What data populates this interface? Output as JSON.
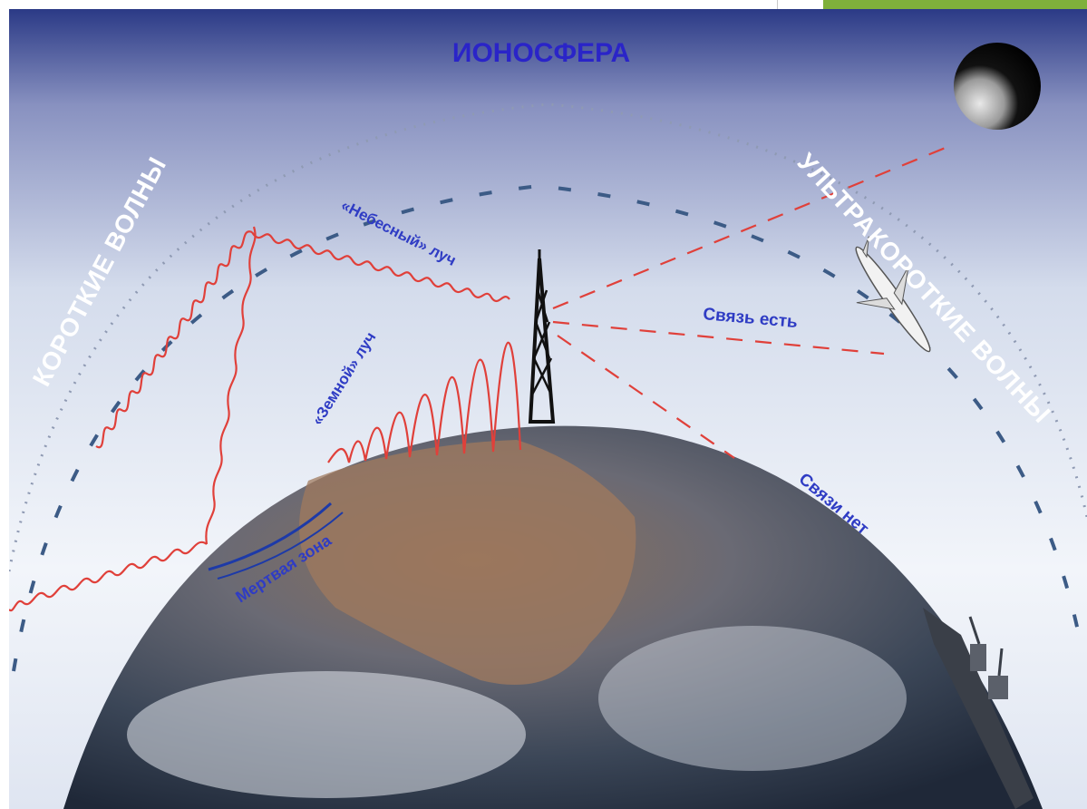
{
  "diagram": {
    "title": "ИОНОСФЕРА",
    "labels": {
      "short_waves": "КОРОТКИЕ ВОЛНЫ",
      "ultrashort_waves": "УЛЬТРАКОРОТКИЕ ВОЛНЫ",
      "sky_ray": "«Небесный» луч",
      "ground_ray": "«Земной» луч",
      "dead_zone": "Мертвая зона",
      "link_yes": "Связь есть",
      "link_no": "Связи нет"
    },
    "colors": {
      "title": "#2a24c8",
      "label_blue": "#2f3cc4",
      "wave_red": "#e0403a",
      "ionosphere_dash": "#3c5b86",
      "arc_text": "#ffffff",
      "accent": "#7fb03b"
    },
    "icons": [
      "radio-tower-icon",
      "airplane-icon",
      "ship-icon",
      "moon-icon"
    ]
  }
}
